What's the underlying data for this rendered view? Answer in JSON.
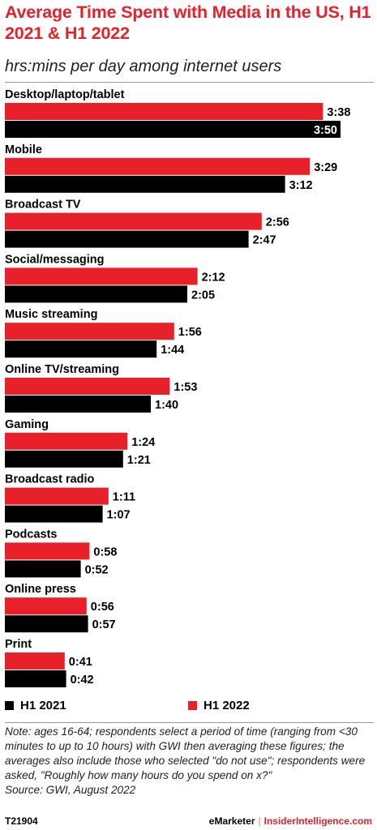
{
  "header": {
    "title": "Average Time Spent with Media in the US, H1 2021 & H1 2022",
    "subtitle": "hrs:mins per day among internet users"
  },
  "legend": {
    "items": [
      {
        "label": "H1 2021",
        "color": "#000000"
      },
      {
        "label": "H1 2022",
        "color": "#e8202a"
      }
    ]
  },
  "footer": {
    "note": "Note: ages 16-64; respondents select a period of time (ranging from <30 minutes to up to 10 hours) with GWI then averaging these figures; the averages also include those who selected \"do not use\"; respondents were asked, \"Roughly how many hours do you spend on x?\"",
    "source": "Source:  GWI, August 2022",
    "chart_id": "T21904",
    "brand_left": "eMarketer",
    "brand_sep": "|",
    "brand_right": "InsiderIntelligence.com"
  },
  "chart_data": {
    "type": "bar",
    "orientation": "horizontal",
    "categories": [
      "Desktop/laptop/tablet",
      "Mobile",
      "Broadcast TV",
      "Social/messaging",
      "Music streaming",
      "Online TV/streaming",
      "Gaming",
      "Broadcast radio",
      "Podcasts",
      "Online press",
      "Print"
    ],
    "series": [
      {
        "name": "H1 2022",
        "color": "#e8202a",
        "values": [
          218,
          209,
          176,
          132,
          116,
          113,
          84,
          71,
          58,
          56,
          41
        ],
        "labels": [
          "3:38",
          "3:29",
          "2:56",
          "2:12",
          "1:56",
          "1:53",
          "1:24",
          "1:11",
          "0:58",
          "0:56",
          "0:41"
        ]
      },
      {
        "name": "H1 2021",
        "color": "#000000",
        "values": [
          230,
          192,
          167,
          125,
          104,
          100,
          81,
          67,
          52,
          57,
          42
        ],
        "labels": [
          "3:50",
          "3:12",
          "2:47",
          "2:05",
          "1:44",
          "1:40",
          "1:21",
          "1:07",
          "0:52",
          "0:57",
          "0:42"
        ]
      }
    ],
    "unit": "hrs:mins per day",
    "legend_position": "bottom",
    "grid": false
  }
}
